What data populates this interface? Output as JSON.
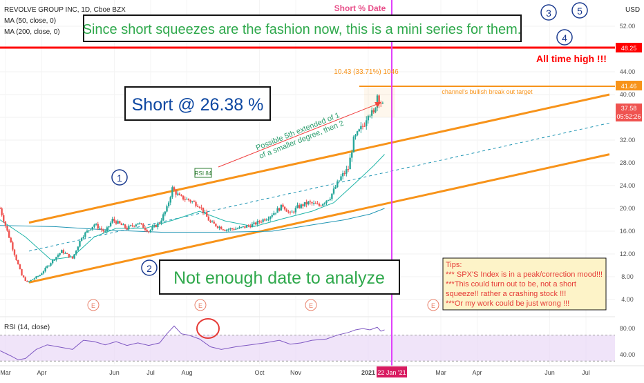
{
  "header": {
    "symbol_line": "REVOLVE GROUP INC, 1D, Cboe BZX",
    "ma50_label": "MA (50, close, 0)",
    "ma200_label": "MA (200, close, 0)",
    "currency": "USD"
  },
  "annotations": {
    "banner": "Since  short squeezes are the fashion now, this is a mini series for them.",
    "short_box": "Short @ 26.38 %",
    "not_enough": "Not enough date to analyze",
    "short_date": "Short % Date",
    "all_time_high": "All time high !!!",
    "wave_label": "Possible 5th extended of 1",
    "wave_label2": "of a smaller degree, then 2",
    "rsi_badge": "RSI 84",
    "measure": "10.43 (33.71%) 1046",
    "breakout_note": "channel's bullish break out target",
    "tips": [
      "Tips:",
      "*** SPX'S Index is in a peak/correction mood!!!",
      "***This could turn out to  be, not a short",
      "squeeze!! rather a crashing stock !!!",
      "***Or my work could be just wrong !!!"
    ],
    "waves": [
      "1",
      "2",
      "3",
      "4",
      "5"
    ],
    "earnings_marker": "E"
  },
  "price_labels": {
    "ath": "48.25",
    "target": "41.46",
    "last": "37.58",
    "countdown": "05:52:26"
  },
  "date_badge": "22 Jan '21",
  "rsi_panel": {
    "label": "RSI (14, close)",
    "ticks": [
      "80.00",
      "40.00"
    ]
  },
  "chart_data": {
    "type": "candlestick",
    "title": "REVOLVE GROUP INC, 1D, Cboe BZX",
    "y_ticks": [
      4,
      8,
      12,
      16,
      20,
      24,
      28,
      32,
      36,
      40,
      44,
      52
    ],
    "x_ticks": [
      "Mar",
      "Apr",
      "Jun",
      "Jul",
      "Aug",
      "Oct",
      "Nov",
      "2021",
      "Mar",
      "Apr",
      "Jun",
      "Jul"
    ],
    "x_tick_months": [
      0,
      1,
      3,
      4,
      5,
      7,
      8,
      10,
      12,
      13,
      15,
      16
    ],
    "months_span": 17.5,
    "ylim": [
      2,
      56
    ],
    "price_path": [
      [
        0.0,
        20.0
      ],
      [
        0.4,
        12.0
      ],
      [
        0.6,
        8.2
      ],
      [
        0.75,
        7.0
      ],
      [
        1.1,
        8.3
      ],
      [
        1.4,
        10.5
      ],
      [
        1.7,
        12.5
      ],
      [
        2.0,
        11.2
      ],
      [
        2.25,
        15.0
      ],
      [
        2.6,
        17.2
      ],
      [
        2.9,
        15.8
      ],
      [
        3.1,
        18.0
      ],
      [
        3.5,
        16.5
      ],
      [
        3.8,
        17.5
      ],
      [
        4.1,
        16.0
      ],
      [
        4.4,
        17.5
      ],
      [
        4.6,
        20.0
      ],
      [
        4.75,
        23.5
      ],
      [
        4.95,
        22.0
      ],
      [
        5.2,
        21.5
      ],
      [
        5.5,
        20.5
      ],
      [
        5.8,
        17.5
      ],
      [
        6.2,
        16.3
      ],
      [
        6.6,
        16.5
      ],
      [
        7.0,
        17.2
      ],
      [
        7.4,
        18.5
      ],
      [
        7.8,
        20.5
      ],
      [
        8.0,
        19.0
      ],
      [
        8.2,
        20.2
      ],
      [
        8.5,
        21.0
      ],
      [
        8.8,
        20.5
      ],
      [
        9.1,
        22.0
      ],
      [
        9.4,
        25.5
      ],
      [
        9.6,
        27.0
      ],
      [
        9.75,
        32.0
      ],
      [
        9.9,
        33.5
      ],
      [
        10.05,
        35.0
      ],
      [
        10.15,
        37.0
      ],
      [
        10.3,
        36.5
      ],
      [
        10.4,
        40.0
      ],
      [
        10.55,
        38.0
      ],
      [
        10.6,
        37.6
      ]
    ],
    "ma50": [
      [
        0.0,
        18.0
      ],
      [
        0.7,
        15.0
      ],
      [
        1.4,
        11.0
      ],
      [
        2.0,
        11.5
      ],
      [
        2.6,
        15.0
      ],
      [
        3.2,
        16.5
      ],
      [
        4.0,
        16.5
      ],
      [
        4.8,
        18.0
      ],
      [
        5.5,
        19.5
      ],
      [
        6.2,
        17.8
      ],
      [
        7.0,
        16.8
      ],
      [
        7.8,
        18.2
      ],
      [
        8.6,
        19.5
      ],
      [
        9.2,
        21.0
      ],
      [
        9.8,
        24.5
      ],
      [
        10.3,
        27.5
      ],
      [
        10.6,
        29.5
      ]
    ],
    "ma200": [
      [
        0.0,
        17.0
      ],
      [
        1.5,
        16.8
      ],
      [
        3.0,
        16.2
      ],
      [
        4.5,
        15.8
      ],
      [
        6.0,
        15.8
      ],
      [
        7.5,
        16.0
      ],
      [
        8.5,
        17.0
      ],
      [
        9.5,
        18.0
      ],
      [
        10.2,
        19.0
      ],
      [
        10.6,
        20.0
      ]
    ],
    "channel_upper": [
      [
        0.8,
        17.5
      ],
      [
        16.8,
        40.0
      ]
    ],
    "channel_lower": [
      [
        0.8,
        7.0
      ],
      [
        16.8,
        29.5
      ]
    ],
    "channel_mid": [
      [
        0.8,
        12.5
      ],
      [
        16.8,
        35.0
      ]
    ],
    "horizontal_lines": [
      {
        "label": "All time high",
        "value": 48.25
      },
      {
        "label": "channel's bullish break out target",
        "value": 41.46
      }
    ],
    "rsi": {
      "ylim": [
        25,
        95
      ],
      "upper_band": 70,
      "lower_band": 30,
      "values": [
        [
          0.0,
          46
        ],
        [
          0.3,
          38
        ],
        [
          0.5,
          32
        ],
        [
          0.7,
          34
        ],
        [
          1.0,
          48
        ],
        [
          1.3,
          55
        ],
        [
          1.6,
          52
        ],
        [
          2.0,
          48
        ],
        [
          2.3,
          62
        ],
        [
          2.6,
          60
        ],
        [
          2.9,
          55
        ],
        [
          3.2,
          60
        ],
        [
          3.5,
          54
        ],
        [
          3.8,
          58
        ],
        [
          4.1,
          54
        ],
        [
          4.4,
          58
        ],
        [
          4.6,
          72
        ],
        [
          4.8,
          84
        ],
        [
          5.0,
          72
        ],
        [
          5.2,
          70
        ],
        [
          5.5,
          64
        ],
        [
          5.8,
          52
        ],
        [
          6.1,
          48
        ],
        [
          6.5,
          52
        ],
        [
          6.9,
          55
        ],
        [
          7.3,
          58
        ],
        [
          7.7,
          62
        ],
        [
          8.0,
          56
        ],
        [
          8.3,
          58
        ],
        [
          8.6,
          62
        ],
        [
          9.0,
          64
        ],
        [
          9.3,
          70
        ],
        [
          9.6,
          74
        ],
        [
          9.8,
          78
        ],
        [
          10.0,
          80
        ],
        [
          10.2,
          78
        ],
        [
          10.4,
          82
        ],
        [
          10.5,
          76
        ],
        [
          10.6,
          78
        ]
      ]
    }
  }
}
